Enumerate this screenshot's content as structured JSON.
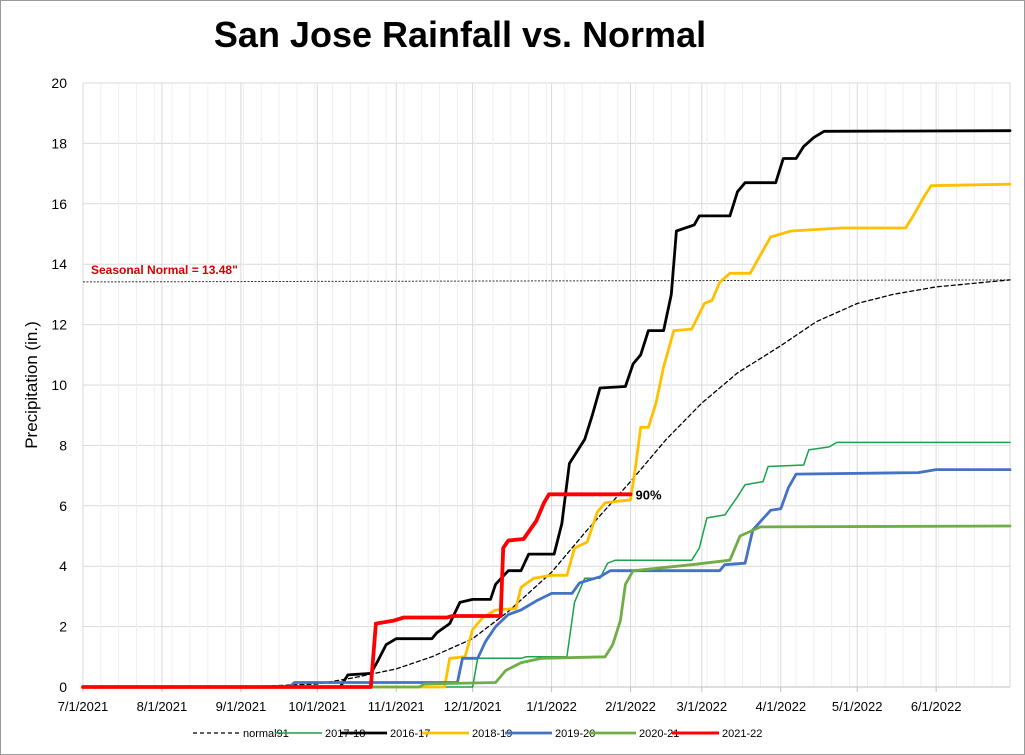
{
  "chart_data": {
    "type": "line",
    "title": "San Jose Rainfall vs. Normal",
    "ylabel": "Precipitation (in.)",
    "xlabel": "",
    "ylim": [
      0,
      20
    ],
    "yticks": [
      "0",
      "2",
      "4",
      "6",
      "8",
      "10",
      "12",
      "14",
      "16",
      "18",
      "20"
    ],
    "xlim": [
      "2021-07-01",
      "2022-06-30"
    ],
    "xticks": [
      "7/1/2021",
      "8/1/2021",
      "9/1/2021",
      "10/1/2021",
      "11/1/2021",
      "12/1/2021",
      "1/1/2022",
      "2/1/2022",
      "3/1/2022",
      "4/1/2022",
      "5/1/2022",
      "6/1/2022"
    ],
    "grid": true,
    "legend_position": "bottom",
    "reference_line": {
      "label": "Seasonal Normal = 13.48\"",
      "value": 13.48,
      "color": "#d40000"
    },
    "annotation": {
      "text": "90%",
      "x": "2022-02-01",
      "y": 6.38
    },
    "series": [
      {
        "name": "normal91",
        "color": "#000000",
        "style": "dashed",
        "width": 1.3,
        "points": [
          [
            "2021-07-01",
            0
          ],
          [
            "2021-09-01",
            0
          ],
          [
            "2021-10-01",
            0.1
          ],
          [
            "2021-10-15",
            0.3
          ],
          [
            "2021-11-01",
            0.6
          ],
          [
            "2021-11-15",
            1.0
          ],
          [
            "2021-12-01",
            1.6
          ],
          [
            "2021-12-15",
            2.5
          ],
          [
            "2022-01-01",
            3.8
          ],
          [
            "2022-01-15",
            5.2
          ],
          [
            "2022-02-01",
            6.8
          ],
          [
            "2022-02-15",
            8.2
          ],
          [
            "2022-03-01",
            9.4
          ],
          [
            "2022-03-15",
            10.4
          ],
          [
            "2022-04-01",
            11.3
          ],
          [
            "2022-04-15",
            12.1
          ],
          [
            "2022-05-01",
            12.7
          ],
          [
            "2022-05-15",
            13.0
          ],
          [
            "2022-06-01",
            13.25
          ],
          [
            "2022-06-30",
            13.48
          ]
        ]
      },
      {
        "name": "2017-18",
        "color": "#19a24a",
        "style": "solid",
        "width": 1.5,
        "points": [
          [
            "2021-07-01",
            0
          ],
          [
            "2021-12-01",
            0
          ],
          [
            "2021-12-03",
            0.95
          ],
          [
            "2021-12-20",
            0.95
          ],
          [
            "2021-12-22",
            1.0
          ],
          [
            "2022-01-07",
            1.0
          ],
          [
            "2022-01-10",
            2.8
          ],
          [
            "2022-01-14",
            3.6
          ],
          [
            "2022-01-20",
            3.6
          ],
          [
            "2022-01-23",
            4.1
          ],
          [
            "2022-01-26",
            4.2
          ],
          [
            "2022-02-25",
            4.2
          ],
          [
            "2022-02-28",
            4.6
          ],
          [
            "2022-03-03",
            5.6
          ],
          [
            "2022-03-10",
            5.7
          ],
          [
            "2022-03-15",
            6.3
          ],
          [
            "2022-03-18",
            6.7
          ],
          [
            "2022-03-25",
            6.8
          ],
          [
            "2022-03-27",
            7.3
          ],
          [
            "2022-04-10",
            7.35
          ],
          [
            "2022-04-12",
            7.85
          ],
          [
            "2022-04-20",
            7.95
          ],
          [
            "2022-04-23",
            8.1
          ],
          [
            "2022-06-30",
            8.1
          ]
        ]
      },
      {
        "name": "2016-17",
        "color": "#000000",
        "style": "solid",
        "width": 2.8,
        "points": [
          [
            "2021-07-01",
            0
          ],
          [
            "2021-10-10",
            0
          ],
          [
            "2021-10-13",
            0.4
          ],
          [
            "2021-10-22",
            0.45
          ],
          [
            "2021-10-25",
            0.9
          ],
          [
            "2021-10-28",
            1.4
          ],
          [
            "2021-11-01",
            1.6
          ],
          [
            "2021-11-15",
            1.6
          ],
          [
            "2021-11-17",
            1.8
          ],
          [
            "2021-11-22",
            2.1
          ],
          [
            "2021-11-26",
            2.8
          ],
          [
            "2021-12-01",
            2.9
          ],
          [
            "2021-12-08",
            2.9
          ],
          [
            "2021-12-10",
            3.4
          ],
          [
            "2021-12-15",
            3.85
          ],
          [
            "2021-12-20",
            3.85
          ],
          [
            "2021-12-23",
            4.4
          ],
          [
            "2022-01-02",
            4.4
          ],
          [
            "2022-01-05",
            5.4
          ],
          [
            "2022-01-08",
            7.4
          ],
          [
            "2022-01-11",
            7.8
          ],
          [
            "2022-01-14",
            8.2
          ],
          [
            "2022-01-17",
            9.0
          ],
          [
            "2022-01-20",
            9.9
          ],
          [
            "2022-01-30",
            9.95
          ],
          [
            "2022-02-02",
            10.7
          ],
          [
            "2022-02-05",
            11.0
          ],
          [
            "2022-02-08",
            11.8
          ],
          [
            "2022-02-14",
            11.8
          ],
          [
            "2022-02-17",
            13.0
          ],
          [
            "2022-02-19",
            15.1
          ],
          [
            "2022-02-26",
            15.3
          ],
          [
            "2022-02-28",
            15.6
          ],
          [
            "2022-03-12",
            15.6
          ],
          [
            "2022-03-15",
            16.4
          ],
          [
            "2022-03-18",
            16.7
          ],
          [
            "2022-03-30",
            16.7
          ],
          [
            "2022-04-02",
            17.5
          ],
          [
            "2022-04-07",
            17.5
          ],
          [
            "2022-04-10",
            17.9
          ],
          [
            "2022-04-14",
            18.2
          ],
          [
            "2022-04-18",
            18.4
          ],
          [
            "2022-06-30",
            18.42
          ]
        ]
      },
      {
        "name": "2018-19",
        "color": "#ffc000",
        "style": "solid",
        "width": 2.8,
        "points": [
          [
            "2021-07-01",
            0
          ],
          [
            "2021-11-20",
            0
          ],
          [
            "2021-11-22",
            0.95
          ],
          [
            "2021-11-28",
            1.0
          ],
          [
            "2021-12-01",
            1.9
          ],
          [
            "2021-12-05",
            2.3
          ],
          [
            "2021-12-10",
            2.55
          ],
          [
            "2021-12-18",
            2.6
          ],
          [
            "2021-12-20",
            3.3
          ],
          [
            "2021-12-25",
            3.6
          ],
          [
            "2022-01-01",
            3.7
          ],
          [
            "2022-01-07",
            3.7
          ],
          [
            "2022-01-10",
            4.6
          ],
          [
            "2022-01-15",
            4.8
          ],
          [
            "2022-01-19",
            5.8
          ],
          [
            "2022-01-22",
            6.1
          ],
          [
            "2022-02-01",
            6.2
          ],
          [
            "2022-02-03",
            7.3
          ],
          [
            "2022-02-05",
            8.6
          ],
          [
            "2022-02-08",
            8.6
          ],
          [
            "2022-02-11",
            9.4
          ],
          [
            "2022-02-14",
            10.6
          ],
          [
            "2022-02-18",
            11.8
          ],
          [
            "2022-02-25",
            11.85
          ],
          [
            "2022-03-02",
            12.7
          ],
          [
            "2022-03-05",
            12.8
          ],
          [
            "2022-03-08",
            13.4
          ],
          [
            "2022-03-12",
            13.7
          ],
          [
            "2022-03-20",
            13.7
          ],
          [
            "2022-03-24",
            14.3
          ],
          [
            "2022-03-28",
            14.9
          ],
          [
            "2022-04-05",
            15.1
          ],
          [
            "2022-04-25",
            15.2
          ],
          [
            "2022-05-20",
            15.2
          ],
          [
            "2022-05-23",
            15.6
          ],
          [
            "2022-05-27",
            16.2
          ],
          [
            "2022-05-30",
            16.6
          ],
          [
            "2022-06-30",
            16.65
          ]
        ]
      },
      {
        "name": "2019-20",
        "color": "#4472c4",
        "style": "solid",
        "width": 2.8,
        "points": [
          [
            "2021-07-01",
            0
          ],
          [
            "2021-09-20",
            0
          ],
          [
            "2021-09-22",
            0.15
          ],
          [
            "2021-11-25",
            0.15
          ],
          [
            "2021-11-27",
            0.95
          ],
          [
            "2021-12-03",
            0.95
          ],
          [
            "2021-12-06",
            1.5
          ],
          [
            "2021-12-10",
            2.0
          ],
          [
            "2021-12-15",
            2.4
          ],
          [
            "2021-12-20",
            2.55
          ],
          [
            "2021-12-26",
            2.85
          ],
          [
            "2022-01-01",
            3.1
          ],
          [
            "2022-01-09",
            3.1
          ],
          [
            "2022-01-12",
            3.45
          ],
          [
            "2022-01-20",
            3.65
          ],
          [
            "2022-01-24",
            3.85
          ],
          [
            "2022-03-08",
            3.85
          ],
          [
            "2022-03-10",
            4.05
          ],
          [
            "2022-03-18",
            4.1
          ],
          [
            "2022-03-21",
            5.2
          ],
          [
            "2022-03-28",
            5.85
          ],
          [
            "2022-04-01",
            5.9
          ],
          [
            "2022-04-04",
            6.6
          ],
          [
            "2022-04-07",
            7.05
          ],
          [
            "2022-05-25",
            7.1
          ],
          [
            "2022-06-01",
            7.2
          ],
          [
            "2022-06-30",
            7.2
          ]
        ]
      },
      {
        "name": "2020-21",
        "color": "#70ad47",
        "style": "solid",
        "width": 2.8,
        "points": [
          [
            "2021-07-01",
            0
          ],
          [
            "2021-11-10",
            0
          ],
          [
            "2021-11-12",
            0.1
          ],
          [
            "2021-12-10",
            0.15
          ],
          [
            "2021-12-14",
            0.55
          ],
          [
            "2021-12-20",
            0.8
          ],
          [
            "2021-12-28",
            0.95
          ],
          [
            "2022-01-22",
            1.0
          ],
          [
            "2022-01-25",
            1.4
          ],
          [
            "2022-01-28",
            2.2
          ],
          [
            "2022-01-30",
            3.4
          ],
          [
            "2022-02-02",
            3.85
          ],
          [
            "2022-02-08",
            3.9
          ],
          [
            "2022-02-25",
            4.05
          ],
          [
            "2022-03-12",
            4.2
          ],
          [
            "2022-03-16",
            5.0
          ],
          [
            "2022-03-20",
            5.15
          ],
          [
            "2022-03-24",
            5.3
          ],
          [
            "2022-06-30",
            5.33
          ]
        ]
      },
      {
        "name": "2021-22",
        "color": "#ff0000",
        "style": "solid",
        "width": 3.8,
        "points": [
          [
            "2021-07-01",
            0
          ],
          [
            "2021-10-22",
            0
          ],
          [
            "2021-10-24",
            2.1
          ],
          [
            "2021-10-31",
            2.2
          ],
          [
            "2021-11-04",
            2.3
          ],
          [
            "2021-11-21",
            2.3
          ],
          [
            "2021-11-23",
            2.35
          ],
          [
            "2021-12-12",
            2.35
          ],
          [
            "2021-12-13",
            4.6
          ],
          [
            "2021-12-15",
            4.85
          ],
          [
            "2021-12-21",
            4.9
          ],
          [
            "2021-12-26",
            5.5
          ],
          [
            "2021-12-29",
            6.1
          ],
          [
            "2021-12-31",
            6.38
          ],
          [
            "2022-02-01",
            6.38
          ]
        ]
      }
    ]
  }
}
